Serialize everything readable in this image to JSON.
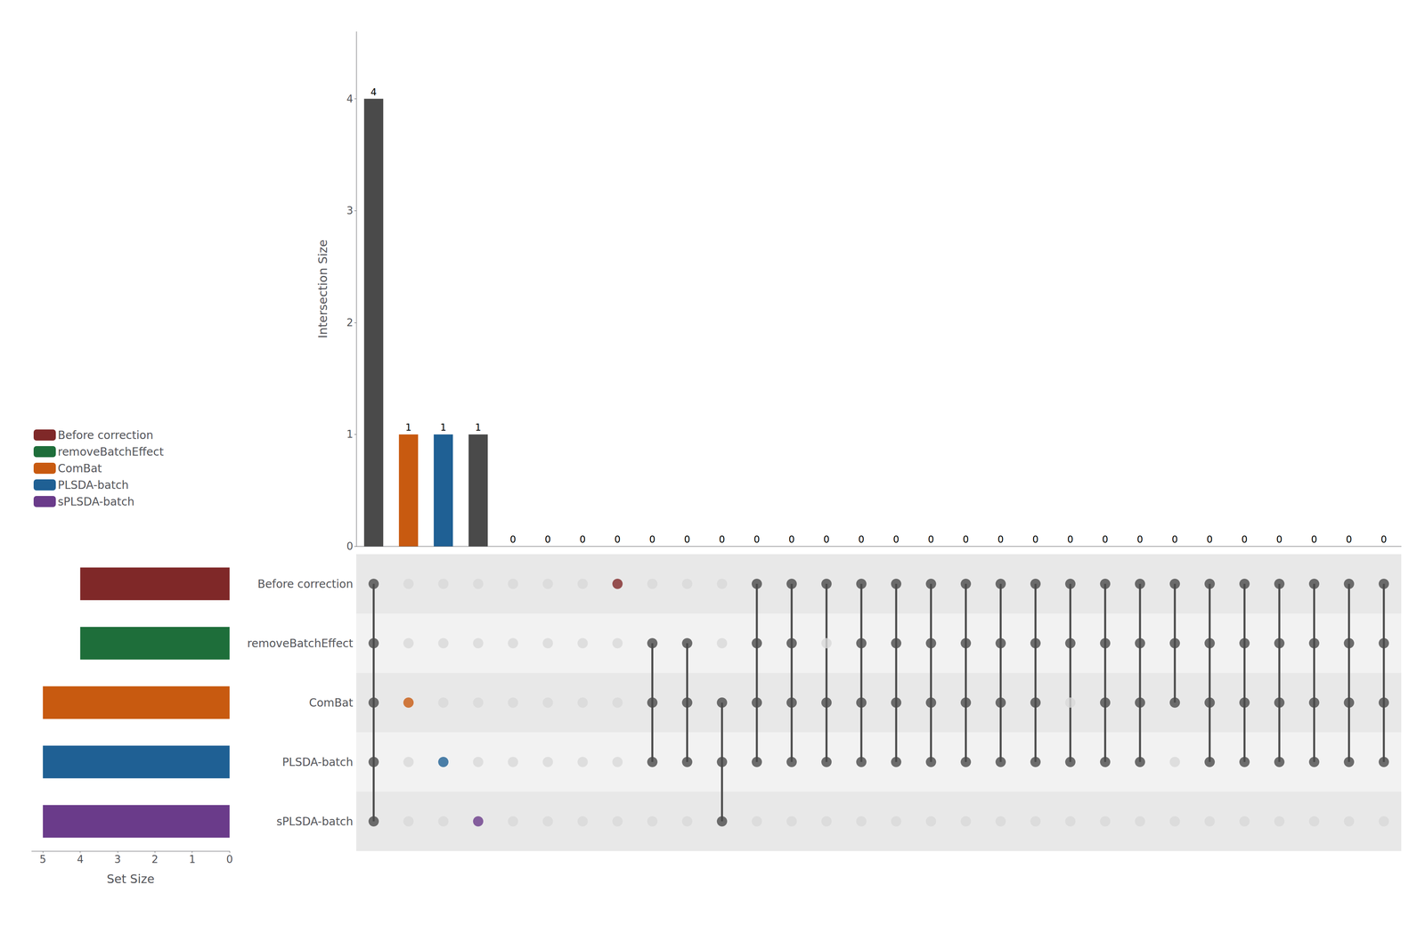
{
  "chart_data": [
    {
      "type": "bar",
      "categories": [
        null,
        null,
        null,
        null,
        null,
        null,
        null,
        null,
        null,
        null,
        null,
        null,
        null,
        null,
        null,
        null,
        null,
        null,
        null,
        null,
        null,
        null,
        null,
        null,
        null,
        null,
        null,
        null,
        null,
        null
      ],
      "values": [
        4,
        1,
        1,
        1,
        0,
        0,
        0,
        0,
        0,
        0,
        0,
        0,
        0,
        0,
        0,
        0,
        0,
        0,
        0,
        0,
        0,
        0,
        0,
        0,
        0,
        0,
        0,
        0,
        0,
        0
      ],
      "colors": [
        "#4a4a4a",
        "#c85a10",
        "#1f6094",
        "#4a4a4a",
        "#4a4a4a",
        "#4a4a4a",
        "#4a4a4a",
        "#4a4a4a",
        "#4a4a4a",
        "#4a4a4a",
        "#4a4a4a",
        "#4a4a4a",
        "#4a4a4a",
        "#4a4a4a",
        "#4a4a4a",
        "#4a4a4a",
        "#4a4a4a",
        "#4a4a4a",
        "#4a4a4a",
        "#4a4a4a",
        "#4a4a4a",
        "#4a4a4a",
        "#4a4a4a",
        "#4a4a4a",
        "#4a4a4a",
        "#4a4a4a",
        "#4a4a4a",
        "#4a4a4a",
        "#4a4a4a",
        "#4a4a4a"
      ],
      "ylabel": "Intersection Size",
      "ylim": [
        0,
        4.6
      ],
      "yticks": [
        0,
        1,
        2,
        3,
        4
      ],
      "data_labels": true,
      "tick_labels": "y",
      "grid": false
    },
    {
      "type": "bar",
      "orientation": "horizontal",
      "categories": [
        "Before correction",
        "removeBatchEffect",
        "ComBat",
        "PLSDA-batch",
        "sPLSDA-batch"
      ],
      "values": [
        4,
        4,
        5,
        5,
        5
      ],
      "colors": [
        "#7f2828",
        "#1e6e3a",
        "#c85a10",
        "#1f6094",
        "#6a3b8a"
      ],
      "xlabel": "Set Size",
      "xlim": [
        5.3,
        0
      ],
      "xticks": [
        0,
        1,
        2,
        3,
        4,
        5
      ],
      "tick_labels": "x",
      "legend": "upper left",
      "grid": false
    },
    {
      "type": "matrix",
      "categories": [
        null,
        null,
        null,
        null,
        null,
        null,
        null,
        null,
        null,
        null,
        null,
        null,
        null,
        null,
        null,
        null,
        null,
        null,
        null,
        null,
        null,
        null,
        null,
        null,
        null,
        null,
        null,
        null,
        null,
        null
      ],
      "rows": [
        "Before correction",
        "removeBatchEffect",
        "ComBat",
        "PLSDA-batch",
        "sPLSDA-batch"
      ],
      "members": [
        [
          "Before correction",
          "removeBatchEffect",
          "ComBat",
          "PLSDA-batch",
          "sPLSDA-batch"
        ],
        [
          "ComBat"
        ],
        [
          "PLSDA-batch"
        ],
        [
          "sPLSDA-batch"
        ],
        [],
        [],
        [],
        [
          "Before correction"
        ],
        [
          "removeBatchEffect",
          "ComBat",
          "PLSDA-batch"
        ],
        [
          "removeBatchEffect",
          "ComBat",
          "PLSDA-batch"
        ],
        [
          "ComBat",
          "PLSDA-batch",
          "sPLSDA-batch"
        ],
        [
          "Before correction",
          "removeBatchEffect",
          "ComBat",
          "PLSDA-batch"
        ],
        [
          "Before correction",
          "removeBatchEffect",
          "ComBat",
          "PLSDA-batch"
        ],
        [
          "Before correction",
          "ComBat",
          "PLSDA-batch"
        ],
        [
          "Before correction",
          "removeBatchEffect",
          "ComBat",
          "PLSDA-batch"
        ],
        [
          "Before correction",
          "removeBatchEffect",
          "ComBat",
          "PLSDA-batch"
        ],
        [
          "Before correction",
          "removeBatchEffect",
          "ComBat",
          "PLSDA-batch"
        ],
        [
          "Before correction",
          "removeBatchEffect",
          "ComBat",
          "PLSDA-batch"
        ],
        [
          "Before correction",
          "removeBatchEffect",
          "ComBat",
          "PLSDA-batch"
        ],
        [
          "Before correction",
          "removeBatchEffect",
          "ComBat",
          "PLSDA-batch"
        ],
        [
          "Before correction",
          "removeBatchEffect",
          "PLSDA-batch"
        ],
        [
          "Before correction",
          "removeBatchEffect",
          "ComBat",
          "PLSDA-batch"
        ],
        [
          "Before correction",
          "removeBatchEffect",
          "ComBat",
          "PLSDA-batch"
        ],
        [
          "Before correction",
          "removeBatchEffect",
          "ComBat"
        ],
        [
          "Before correction",
          "removeBatchEffect",
          "ComBat",
          "PLSDA-batch"
        ],
        [
          "Before correction",
          "removeBatchEffect",
          "ComBat",
          "PLSDA-batch"
        ],
        [
          "Before correction",
          "removeBatchEffect",
          "ComBat",
          "PLSDA-batch"
        ],
        [
          "Before correction",
          "removeBatchEffect",
          "ComBat",
          "PLSDA-batch"
        ],
        [
          "Before correction",
          "removeBatchEffect",
          "ComBat",
          "PLSDA-batch"
        ],
        [
          "Before correction",
          "removeBatchEffect",
          "ComBat",
          "PLSDA-batch"
        ]
      ],
      "colors": [
        [
          "#4a4a4a",
          "#4a4a4a",
          "#4a4a4a",
          "#4a4a4a",
          "#4a4a4a"
        ],
        [
          "#d8d8d8",
          "#d8d8d8",
          "#c85a10",
          "#d8d8d8",
          "#d8d8d8"
        ],
        [
          "#d8d8d8",
          "#d8d8d8",
          "#d8d8d8",
          "#1f6094",
          "#d8d8d8"
        ],
        [
          "#d8d8d8",
          "#d8d8d8",
          "#d8d8d8",
          "#d8d8d8",
          "#6a3b8a"
        ],
        [
          "#d8d8d8",
          "#d8d8d8",
          "#d8d8d8",
          "#d8d8d8",
          "#d8d8d8"
        ],
        [
          "#d8d8d8",
          "#d8d8d8",
          "#d8d8d8",
          "#d8d8d8",
          "#d8d8d8"
        ],
        [
          "#d8d8d8",
          "#d8d8d8",
          "#d8d8d8",
          "#d8d8d8",
          "#d8d8d8"
        ],
        [
          "#7f2828",
          "#d8d8d8",
          "#d8d8d8",
          "#d8d8d8",
          "#d8d8d8"
        ],
        [
          "#d8d8d8",
          "#4a4a4a",
          "#4a4a4a",
          "#4a4a4a",
          "#d8d8d8"
        ],
        [
          "#d8d8d8",
          "#4a4a4a",
          "#4a4a4a",
          "#4a4a4a",
          "#d8d8d8"
        ],
        [
          "#d8d8d8",
          "#d8d8d8",
          "#4a4a4a",
          "#4a4a4a",
          "#4a4a4a"
        ],
        [
          "#4a4a4a",
          "#4a4a4a",
          "#4a4a4a",
          "#4a4a4a",
          "#d8d8d8"
        ],
        [
          "#4a4a4a",
          "#4a4a4a",
          "#4a4a4a",
          "#4a4a4a",
          "#d8d8d8"
        ],
        [
          "#4a4a4a",
          "#d8d8d8",
          "#4a4a4a",
          "#4a4a4a",
          "#d8d8d8"
        ],
        [
          "#4a4a4a",
          "#4a4a4a",
          "#4a4a4a",
          "#4a4a4a",
          "#d8d8d8"
        ],
        [
          "#4a4a4a",
          "#4a4a4a",
          "#4a4a4a",
          "#4a4a4a",
          "#d8d8d8"
        ],
        [
          "#4a4a4a",
          "#4a4a4a",
          "#4a4a4a",
          "#4a4a4a",
          "#d8d8d8"
        ],
        [
          "#4a4a4a",
          "#4a4a4a",
          "#4a4a4a",
          "#4a4a4a",
          "#d8d8d8"
        ],
        [
          "#4a4a4a",
          "#4a4a4a",
          "#4a4a4a",
          "#4a4a4a",
          "#d8d8d8"
        ],
        [
          "#4a4a4a",
          "#4a4a4a",
          "#4a4a4a",
          "#4a4a4a",
          "#d8d8d8"
        ],
        [
          "#4a4a4a",
          "#4a4a4a",
          "#d8d8d8",
          "#4a4a4a",
          "#d8d8d8"
        ],
        [
          "#4a4a4a",
          "#4a4a4a",
          "#4a4a4a",
          "#4a4a4a",
          "#d8d8d8"
        ],
        [
          "#4a4a4a",
          "#4a4a4a",
          "#4a4a4a",
          "#4a4a4a",
          "#d8d8d8"
        ],
        [
          "#4a4a4a",
          "#4a4a4a",
          "#4a4a4a",
          "#d8d8d8",
          "#d8d8d8"
        ],
        [
          "#4a4a4a",
          "#4a4a4a",
          "#4a4a4a",
          "#4a4a4a",
          "#d8d8d8"
        ],
        [
          "#4a4a4a",
          "#4a4a4a",
          "#4a4a4a",
          "#4a4a4a",
          "#d8d8d8"
        ],
        [
          "#4a4a4a",
          "#4a4a4a",
          "#4a4a4a",
          "#4a4a4a",
          "#d8d8d8"
        ],
        [
          "#4a4a4a",
          "#4a4a4a",
          "#4a4a4a",
          "#4a4a4a",
          "#d8d8d8"
        ],
        [
          "#4a4a4a",
          "#4a4a4a",
          "#4a4a4a",
          "#4a4a4a",
          "#d8d8d8"
        ],
        [
          "#4a4a4a",
          "#4a4a4a",
          "#4a4a4a",
          "#4a4a4a",
          "#d8d8d8"
        ]
      ],
      "tick_labels": "y",
      "grid": false
    }
  ]
}
